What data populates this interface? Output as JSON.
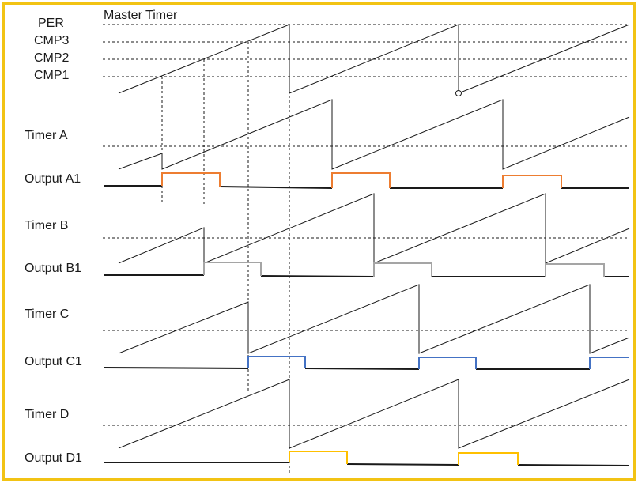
{
  "title": "Master Timer",
  "levels": {
    "per": "PER",
    "cmp3": "CMP3",
    "cmp2": "CMP2",
    "cmp1": "CMP1"
  },
  "timers": [
    {
      "label": "Timer A",
      "output": "Output A1",
      "color": "#ed7d31"
    },
    {
      "label": "Timer B",
      "output": "Output B1",
      "color": "#a5a5a5"
    },
    {
      "label": "Timer C",
      "output": "Output C1",
      "color": "#4472c4"
    },
    {
      "label": "Timer D",
      "output": "Output D1",
      "color": "#ffc000"
    }
  ],
  "colors": {
    "border": "#f2c314",
    "waveform": "#1a1a1a",
    "dashed": "#1a1a1a"
  }
}
